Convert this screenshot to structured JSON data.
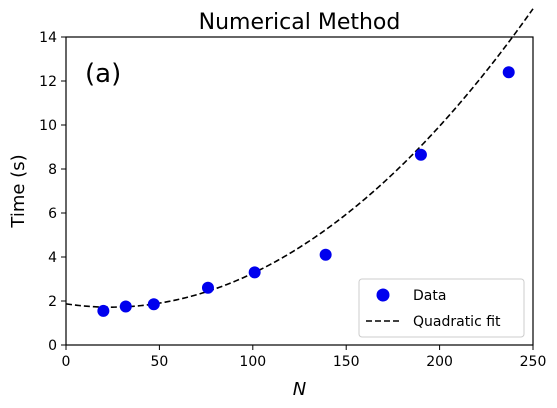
{
  "chart_data": {
    "type": "scatter",
    "title": "Numerical Method",
    "xlabel": "N",
    "ylabel": "Time (s)",
    "panel_label": "(a)",
    "xlim": [
      0,
      250
    ],
    "ylim": [
      0,
      14
    ],
    "xticks": [
      0,
      50,
      100,
      150,
      200,
      250
    ],
    "yticks": [
      0,
      2,
      4,
      6,
      8,
      10,
      12,
      14
    ],
    "grid": false,
    "legend_position": "lower-right",
    "series": [
      {
        "name": "Data",
        "kind": "scatter",
        "color": "#0000ee",
        "x": [
          20,
          32,
          47,
          76,
          101,
          139,
          190,
          237
        ],
        "y": [
          1.55,
          1.75,
          1.85,
          2.6,
          3.3,
          4.1,
          8.65,
          12.4
        ]
      },
      {
        "name": "Quadratic fit",
        "kind": "line",
        "style": "dashed",
        "color": "#000000",
        "coefficients": {
          "a": 0.000265,
          "b": -0.0126,
          "c": 1.87
        }
      }
    ]
  }
}
